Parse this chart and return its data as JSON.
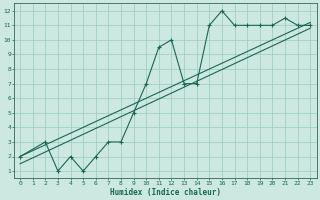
{
  "xlabel": "Humidex (Indice chaleur)",
  "bg_color": "#cce8e0",
  "grid_color": "#99ccbb",
  "line_color": "#1a6655",
  "spine_color": "#336655",
  "xlim": [
    -0.5,
    23.5
  ],
  "ylim": [
    0.5,
    12.5
  ],
  "xticks": [
    0,
    1,
    2,
    3,
    4,
    5,
    6,
    7,
    8,
    9,
    10,
    11,
    12,
    13,
    14,
    15,
    16,
    17,
    18,
    19,
    20,
    21,
    22,
    23
  ],
  "yticks": [
    1,
    2,
    3,
    4,
    5,
    6,
    7,
    8,
    9,
    10,
    11,
    12
  ],
  "main_x": [
    0,
    2,
    3,
    4,
    5,
    6,
    7,
    8,
    9,
    10,
    11,
    12,
    13,
    14,
    15,
    16,
    17,
    18,
    19,
    20,
    21,
    22,
    23
  ],
  "main_y": [
    2,
    3,
    1,
    2,
    1,
    2,
    3,
    3,
    5,
    7,
    9.5,
    10,
    7,
    7,
    11,
    12,
    11,
    11,
    11,
    11,
    11.5,
    11,
    11
  ],
  "line1_x": [
    0,
    23
  ],
  "line1_y": [
    2.0,
    11.2
  ],
  "line2_x": [
    0,
    23
  ],
  "line2_y": [
    1.5,
    10.8
  ]
}
